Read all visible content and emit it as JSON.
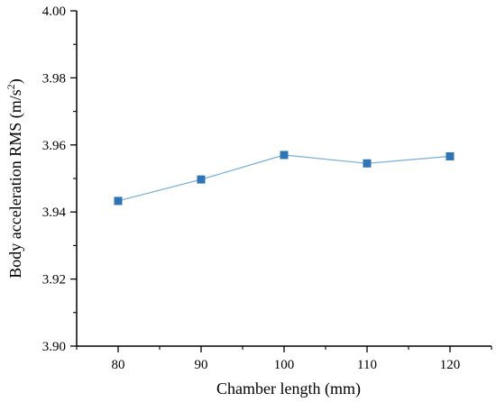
{
  "chart_data": {
    "type": "line",
    "title": "",
    "xlabel": "Chamber length (mm)",
    "ylabel_main": "Body acceleration RMS (m/s",
    "ylabel_sup": "2",
    "ylabel_end": ")",
    "xlim": [
      75,
      125
    ],
    "ylim": [
      3.9,
      4.0
    ],
    "x_ticks": [
      80,
      90,
      100,
      110,
      120
    ],
    "x_tick_labels": [
      "80",
      "90",
      "100",
      "110",
      "120"
    ],
    "y_ticks": [
      3.9,
      3.92,
      3.94,
      3.96,
      3.98,
      4.0
    ],
    "y_tick_labels": [
      "3.90",
      "3.92",
      "3.94",
      "3.96",
      "3.98",
      "4.00"
    ],
    "grid": false,
    "series": [
      {
        "x": [
          80,
          90,
          100,
          110,
          120
        ],
        "values": [
          3.9433,
          3.9497,
          3.957,
          3.9545,
          3.9566
        ],
        "line_color": "#7fb3dc",
        "marker_color": "#2f74b5",
        "marker": "square"
      }
    ]
  }
}
